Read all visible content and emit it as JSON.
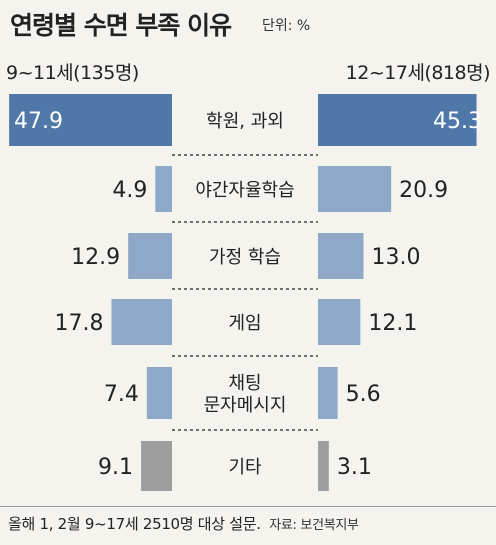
{
  "title": "연령별 수면 부족 이유",
  "unit": "단위: %",
  "footer": {
    "note": "올해 1, 2월 9~17세 2510명 대상 설문.",
    "source": "자료: 보건복지부"
  },
  "colors": {
    "highlight": "#4f78a8",
    "bar": "#8ea9c8",
    "other": "#9e9e9e",
    "background": "#f4f3ee"
  },
  "chart_data": {
    "type": "bar",
    "layout": "back-to-back",
    "categories": [
      [
        "학원, 과외"
      ],
      [
        "야간자율학습"
      ],
      [
        "가정 학습"
      ],
      [
        "게임"
      ],
      [
        "채팅",
        "문자메시지"
      ],
      [
        "기타"
      ]
    ],
    "series": [
      {
        "name": "9~11세(135명)",
        "side": "left",
        "values": [
          47.9,
          4.9,
          12.9,
          17.8,
          7.4,
          9.1
        ],
        "labels": [
          "47.9",
          "4.9",
          "12.9",
          "17.8",
          "7.4",
          "9.1"
        ]
      },
      {
        "name": "12~17세(818명)",
        "side": "right",
        "values": [
          45.3,
          20.9,
          13.0,
          12.1,
          5.6,
          3.1
        ],
        "labels": [
          "45.3",
          "20.9",
          "13.0",
          "12.1",
          "5.6",
          "3.1"
        ]
      }
    ]
  }
}
